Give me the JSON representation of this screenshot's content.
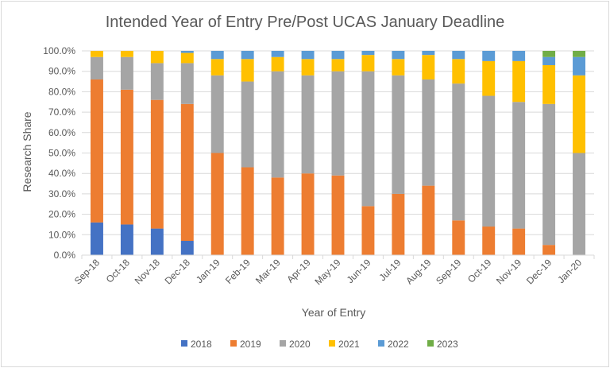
{
  "chart_data": {
    "type": "bar",
    "stacked": true,
    "title": "Intended Year of Entry Pre/Post UCAS January Deadline",
    "xlabel": "Year of Entry",
    "ylabel": "Research Share",
    "ylim": [
      0,
      100
    ],
    "ytick_step": 10,
    "ytick_labels": [
      "0.0%",
      "10.0%",
      "20.0%",
      "30.0%",
      "40.0%",
      "50.0%",
      "60.0%",
      "70.0%",
      "80.0%",
      "90.0%",
      "100.0%"
    ],
    "grid": true,
    "legend_position": "bottom",
    "categories": [
      "Sep-18",
      "Oct-18",
      "Nov-18",
      "Dec-18",
      "Jan-19",
      "Feb-19",
      "Mar-19",
      "Apr-19",
      "May-19",
      "Jun-19",
      "Jul-19",
      "Aug-19",
      "Sep-19",
      "Oct-19",
      "Nov-19",
      "Dec-19",
      "Jan-20"
    ],
    "series": [
      {
        "name": "2018",
        "color": "#4472c4",
        "values": [
          16,
          15,
          13,
          7,
          0,
          0,
          0,
          0,
          0,
          0,
          0,
          0,
          0,
          0,
          0,
          0,
          0
        ]
      },
      {
        "name": "2019",
        "color": "#ed7d31",
        "values": [
          70,
          66,
          63,
          67,
          50,
          43,
          38,
          40,
          39,
          24,
          30,
          34,
          17,
          14,
          13,
          5,
          0
        ]
      },
      {
        "name": "2020",
        "color": "#a5a5a5",
        "values": [
          11,
          16,
          18,
          20,
          38,
          42,
          52,
          48,
          51,
          66,
          58,
          52,
          67,
          64,
          62,
          69,
          50
        ]
      },
      {
        "name": "2021",
        "color": "#ffc000",
        "values": [
          3,
          3,
          6,
          5,
          8,
          11,
          7,
          8,
          6,
          8,
          8,
          12,
          12,
          17,
          20,
          19,
          38
        ]
      },
      {
        "name": "2022",
        "color": "#5b9bd5",
        "values": [
          0,
          0,
          0,
          1,
          4,
          4,
          3,
          4,
          4,
          2,
          4,
          2,
          4,
          5,
          5,
          4,
          9
        ]
      },
      {
        "name": "2023",
        "color": "#70ad47",
        "values": [
          0,
          0,
          0,
          0,
          0,
          0,
          0,
          0,
          0,
          0,
          0,
          0,
          0,
          0,
          0,
          3,
          3
        ]
      }
    ]
  }
}
